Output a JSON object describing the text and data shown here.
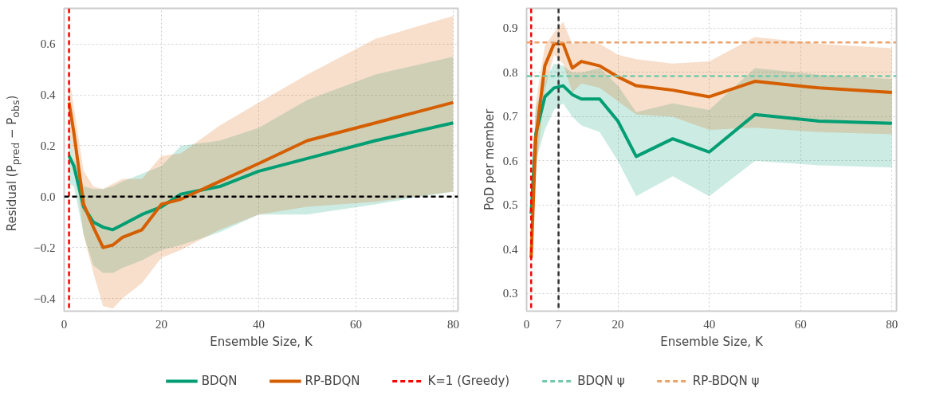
{
  "chart_data": [
    {
      "type": "line",
      "xlabel": "Ensemble Size, K",
      "ylabel": "Residual (P$_{pred}$ − P$_{obs}$)",
      "x": [
        1,
        2,
        4,
        6,
        8,
        10,
        12,
        16,
        20,
        24,
        32,
        40,
        50,
        64,
        80
      ],
      "series": [
        {
          "color": "#029e73",
          "values": [
            0.16,
            0.12,
            -0.04,
            -0.1,
            -0.12,
            -0.13,
            -0.11,
            -0.07,
            -0.04,
            0.01,
            0.04,
            0.1,
            0.15,
            0.22,
            0.29
          ],
          "lower": [
            0.05,
            0.04,
            -0.15,
            -0.27,
            -0.3,
            -0.3,
            -0.28,
            -0.25,
            -0.21,
            -0.19,
            -0.14,
            -0.07,
            -0.07,
            -0.03,
            0.02
          ],
          "upper": [
            0.27,
            0.15,
            0.04,
            0.03,
            0.03,
            0.04,
            0.06,
            0.09,
            0.12,
            0.2,
            0.22,
            0.27,
            0.38,
            0.48,
            0.55
          ]
        },
        {
          "color": "#d55e00",
          "values": [
            0.37,
            0.25,
            -0.03,
            -0.12,
            -0.2,
            -0.19,
            -0.16,
            -0.13,
            -0.03,
            -0.01,
            0.06,
            0.13,
            0.22,
            0.29,
            0.37
          ],
          "lower": [
            0.27,
            0.15,
            -0.15,
            -0.3,
            -0.43,
            -0.44,
            -0.4,
            -0.34,
            -0.24,
            -0.21,
            -0.13,
            -0.07,
            -0.04,
            -0.02,
            0.02
          ],
          "upper": [
            0.47,
            0.35,
            0.1,
            0.04,
            0.03,
            0.05,
            0.07,
            0.07,
            0.16,
            0.17,
            0.28,
            0.37,
            0.48,
            0.62,
            0.71
          ]
        }
      ],
      "xlim": [
        0,
        81
      ],
      "xticks": [
        0,
        20,
        40,
        60,
        80
      ],
      "ylim": [
        -0.45,
        0.74
      ],
      "yticks": [
        {
          "value": -0.4,
          "label": "−0.4"
        },
        {
          "value": -0.2,
          "label": "−0.2"
        },
        {
          "value": 0,
          "label": "0.0"
        },
        0.2,
        0.4,
        0.6
      ],
      "ref_lines": [
        {
          "axis": "x",
          "value": 1,
          "color": "#ff0000",
          "line_style": "dashed"
        },
        {
          "axis": "y",
          "value": 0,
          "color": "#000000",
          "line_style": "dashed"
        }
      ],
      "grid": true,
      "line_style": "solid",
      "marker": "none"
    },
    {
      "type": "line",
      "xlabel": "Ensemble Size, K",
      "ylabel": "PoD per member",
      "x": [
        1,
        2,
        4,
        6,
        8,
        10,
        12,
        16,
        20,
        24,
        32,
        40,
        50,
        64,
        80
      ],
      "series": [
        {
          "name": "BDQN",
          "color": "#029e73",
          "values": [
            0.48,
            0.66,
            0.745,
            0.765,
            0.77,
            0.75,
            0.74,
            0.74,
            0.69,
            0.61,
            0.65,
            0.62,
            0.705,
            0.69,
            0.685
          ],
          "lower": [
            0.43,
            0.6,
            0.67,
            0.715,
            0.73,
            0.7,
            0.68,
            0.665,
            0.6,
            0.52,
            0.565,
            0.52,
            0.6,
            0.59,
            0.585
          ],
          "upper": [
            0.53,
            0.72,
            0.78,
            0.82,
            0.815,
            0.8,
            0.8,
            0.81,
            0.77,
            0.71,
            0.73,
            0.715,
            0.81,
            0.795,
            0.785
          ]
        },
        {
          "name": "RP-BDQN",
          "color": "#d55e00",
          "values": [
            0.38,
            0.65,
            0.815,
            0.865,
            0.865,
            0.81,
            0.825,
            0.815,
            0.79,
            0.77,
            0.76,
            0.745,
            0.78,
            0.765,
            0.755
          ],
          "lower": [
            0.34,
            0.57,
            0.76,
            0.84,
            0.82,
            0.755,
            0.775,
            0.765,
            0.735,
            0.705,
            0.7,
            0.67,
            0.675,
            0.665,
            0.66
          ],
          "upper": [
            0.42,
            0.73,
            0.86,
            0.89,
            0.915,
            0.865,
            0.87,
            0.865,
            0.84,
            0.83,
            0.82,
            0.825,
            0.88,
            0.865,
            0.855
          ]
        }
      ],
      "xlim": [
        0,
        81
      ],
      "xticks": [
        0,
        7,
        20,
        40,
        60,
        80
      ],
      "ylim": [
        0.26,
        0.945
      ],
      "yticks": [
        0.3,
        0.4,
        0.5,
        0.6,
        0.7,
        0.8,
        0.9
      ],
      "ref_lines": [
        {
          "axis": "x",
          "value": 1,
          "label": "K=1 (Greedy)",
          "color": "#ff0000",
          "line_style": "dashed"
        },
        {
          "axis": "x",
          "value": 7,
          "color": "#333333",
          "line_style": "dashed"
        },
        {
          "axis": "y",
          "value": 0.792,
          "label": "BDQN ψ",
          "color": "#6fcbab",
          "line_style": "dashed"
        },
        {
          "axis": "y",
          "value": 0.868,
          "label": "RP-BDQN ψ",
          "color": "#eba36c",
          "line_style": "dashed"
        }
      ],
      "grid": true,
      "legend": "bottom",
      "line_style": "solid",
      "marker": "none"
    }
  ]
}
